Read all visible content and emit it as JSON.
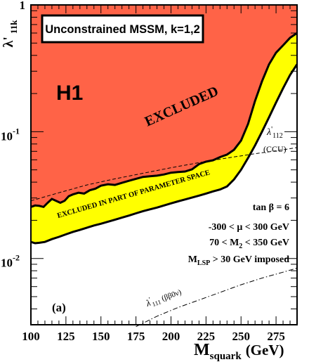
{
  "chart_data": {
    "type": "area",
    "title": "Unconstrained MSSM, k=1,2",
    "xlabel": {
      "main": "M",
      "sub": "squark",
      "unit": "(GeV)"
    },
    "ylabel": {
      "main": "λ'",
      "sub": "11k"
    },
    "xlim": [
      100,
      290
    ],
    "ylim": [
      0.003,
      1
    ],
    "yscale": "log",
    "x_ticks": [
      "100",
      "125",
      "150",
      "175",
      "200",
      "225",
      "250",
      "275"
    ],
    "x_tick_values": [
      100,
      125,
      150,
      175,
      200,
      225,
      250,
      275
    ],
    "y_ticks": [
      {
        "value": 1,
        "base": "1",
        "exp": ""
      },
      {
        "value": 0.1,
        "base": "10",
        "exp": "-1"
      },
      {
        "value": 0.01,
        "base": "10",
        "exp": "-2"
      }
    ],
    "panel_label": "(a)",
    "experiment_label": "H1",
    "excluded_label": "EXCLUDED",
    "partial_label": "EXCLUDED IN PART OF PARAMETER SPACE",
    "parameters": [
      "tan β = 6",
      "-300 < μ < 300 GeV",
      "70 < M₂ < 350 GeV",
      "M_LSP > 30 GeV imposed"
    ],
    "param_lines": [
      {
        "main": "tan β = 6",
        "sub": "",
        "rest": ""
      },
      {
        "main": "-300 < μ < 300 GeV",
        "sub": "",
        "rest": ""
      },
      {
        "main": "70 < M",
        "sub": "2",
        "rest": " < 350 GeV"
      },
      {
        "main": "M",
        "sub": "LSP",
        "rest": " > 30 GeV imposed"
      }
    ],
    "series": [
      {
        "name": "excluded",
        "role": "upper boundary of fully excluded region",
        "color": "#ff6347",
        "x": [
          100,
          103,
          106,
          109,
          112,
          115,
          118,
          121,
          124,
          127,
          130,
          134,
          138,
          142,
          146,
          150,
          155,
          160,
          165,
          170,
          175,
          180,
          185,
          190,
          195,
          200,
          205,
          210,
          215,
          220,
          225,
          230,
          235,
          240,
          245,
          250,
          255,
          260,
          265,
          270,
          275,
          280,
          285,
          290
        ],
        "y": [
          0.0255,
          0.0262,
          0.026,
          0.0255,
          0.0275,
          0.0295,
          0.0285,
          0.0275,
          0.0285,
          0.031,
          0.032,
          0.033,
          0.0325,
          0.0345,
          0.0355,
          0.0375,
          0.0385,
          0.038,
          0.0395,
          0.041,
          0.0425,
          0.044,
          0.0445,
          0.045,
          0.046,
          0.0475,
          0.048,
          0.0485,
          0.0505,
          0.0555,
          0.058,
          0.0595,
          0.063,
          0.066,
          0.072,
          0.085,
          0.115,
          0.175,
          0.25,
          0.34,
          0.42,
          0.48,
          0.55,
          0.6
        ]
      },
      {
        "name": "partial",
        "role": "lower boundary of region excluded in part of parameter space",
        "color": "#ffff00",
        "x": [
          100,
          103,
          106,
          110,
          115,
          120,
          125,
          130,
          135,
          140,
          145,
          150,
          155,
          160,
          165,
          170,
          175,
          180,
          185,
          190,
          195,
          200,
          205,
          210,
          215,
          220,
          225,
          230,
          235,
          240,
          245,
          250,
          255,
          260,
          265,
          270,
          275,
          280,
          285,
          290
        ],
        "y": [
          0.0135,
          0.0132,
          0.0133,
          0.0135,
          0.0142,
          0.0148,
          0.0155,
          0.0162,
          0.0168,
          0.0175,
          0.0182,
          0.0188,
          0.0195,
          0.0202,
          0.021,
          0.0218,
          0.0227,
          0.0236,
          0.0244,
          0.0252,
          0.0262,
          0.0272,
          0.0282,
          0.0292,
          0.0302,
          0.0313,
          0.0325,
          0.0338,
          0.035,
          0.037,
          0.042,
          0.05,
          0.062,
          0.078,
          0.1,
          0.13,
          0.17,
          0.22,
          0.28,
          0.34
        ]
      },
      {
        "name": "λ' 112 (CCU)",
        "style": "dashed",
        "x": [
          100,
          120,
          140,
          160,
          180,
          200,
          220,
          240,
          260,
          280,
          290
        ],
        "y": [
          0.0285,
          0.033,
          0.038,
          0.0425,
          0.047,
          0.052,
          0.057,
          0.062,
          0.067,
          0.072,
          0.075
        ]
      },
      {
        "name": "λ' 111 (ββ0ν)",
        "style": "dashdot",
        "x": [
          175,
          190,
          205,
          220,
          235,
          250,
          265,
          280,
          290
        ],
        "y": [
          0.0029,
          0.0035,
          0.0041,
          0.0047,
          0.0054,
          0.0062,
          0.007,
          0.0078,
          0.0084
        ]
      }
    ],
    "lines": [
      {
        "main": "λ",
        "sup": "'",
        "sub": "112",
        "tail": ""
      },
      {
        "main": "(CCU)",
        "sup": "",
        "sub": "",
        "tail": ""
      },
      {
        "main": "λ",
        "sup": "'",
        "sub": "111",
        "tail": " (ββ0ν)"
      }
    ]
  },
  "colors": {
    "excluded": "#ff6347",
    "partial": "#ffff00",
    "axis": "#000000",
    "background": "#ffffff"
  }
}
